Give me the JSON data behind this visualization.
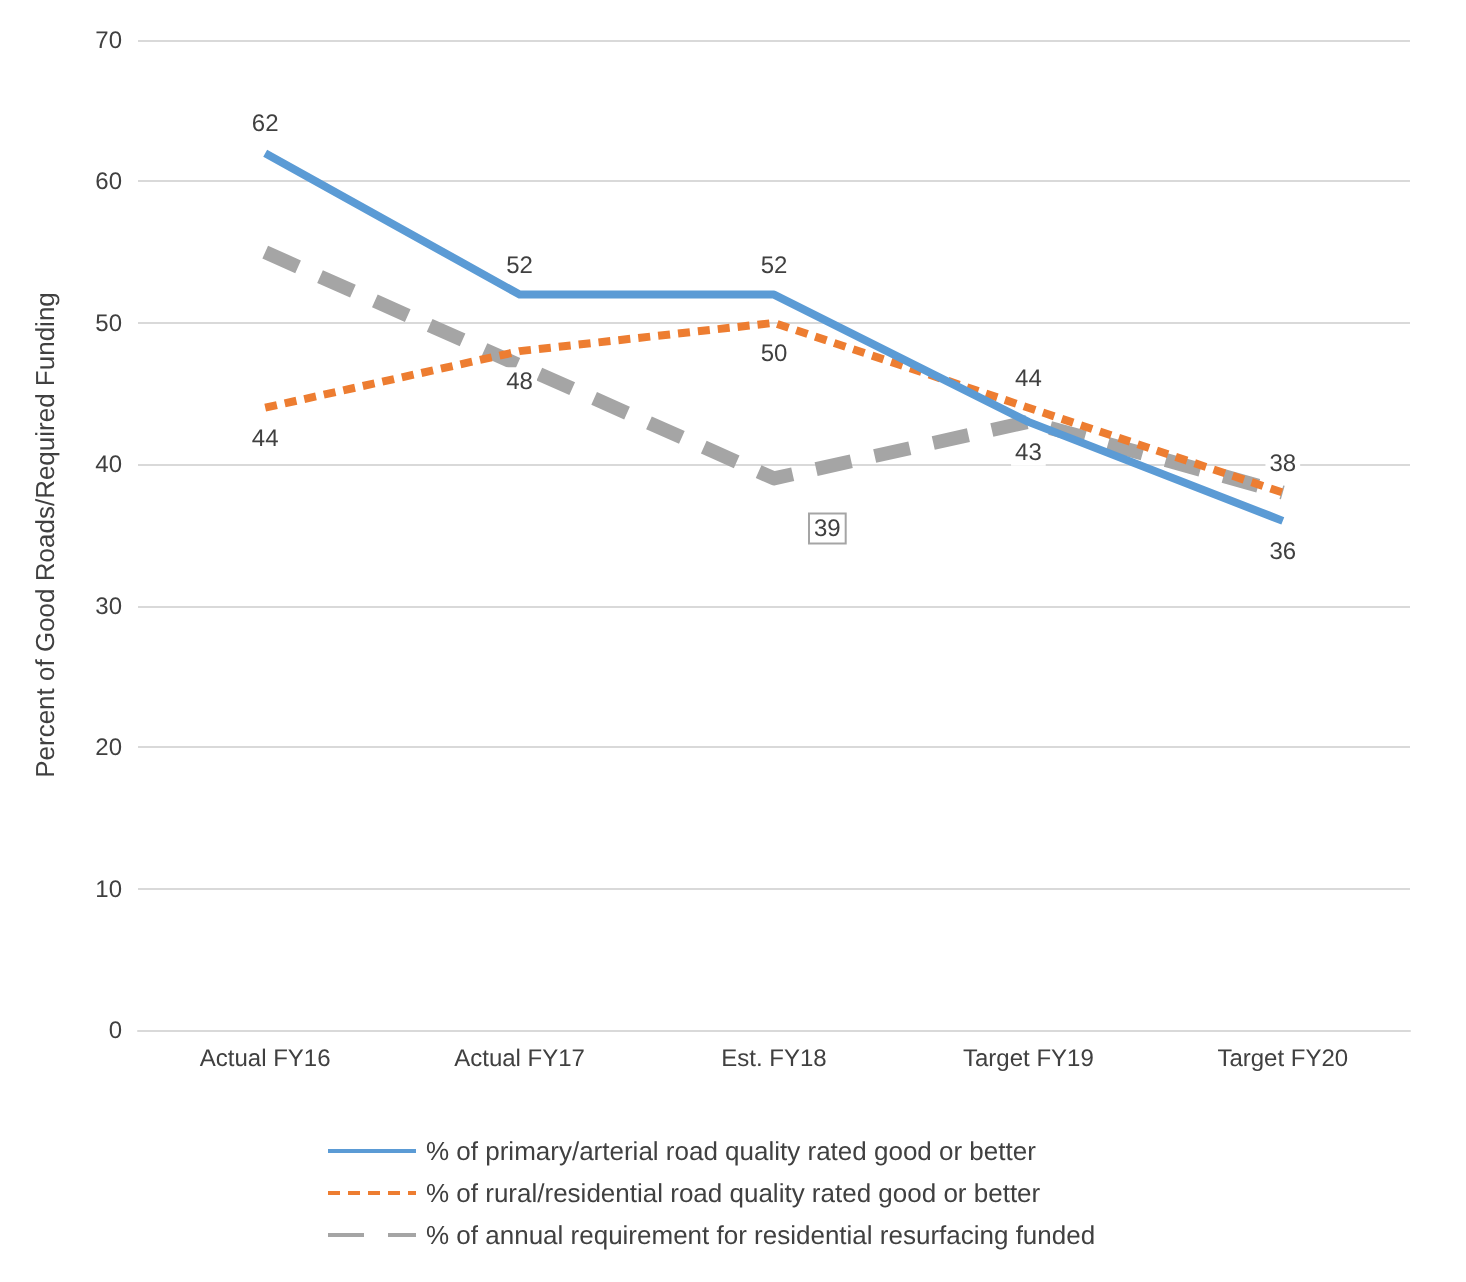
{
  "chart_data": {
    "type": "line",
    "ylabel": "Percent of Good Roads/Required Funding",
    "categories": [
      "Actual FY16",
      "Actual FY17",
      "Est. FY18",
      "Target FY19",
      "Target FY20"
    ],
    "series": [
      {
        "name": "% of primary/arterial road quality rated good or better",
        "color": "#5b9bd5",
        "line_style": "solid",
        "values": [
          62,
          52,
          52,
          43,
          36
        ],
        "value_labels": [
          "62",
          "52",
          "52",
          "43",
          "36"
        ]
      },
      {
        "name": "% of rural/residential road quality rated good or better",
        "color": "#ed7d31",
        "line_style": "dotted",
        "values": [
          44,
          48,
          50,
          44,
          38
        ],
        "value_labels": [
          "44",
          "48",
          "50",
          "44",
          "38"
        ]
      },
      {
        "name": "% of annual requirement for residential resurfacing funded",
        "color": "#a5a5a5",
        "line_style": "dashed",
        "values": [
          55,
          47,
          39,
          43,
          38
        ],
        "value_labels": [
          null,
          null,
          "39",
          null,
          null
        ]
      }
    ],
    "ylim": [
      0,
      70
    ],
    "yticks": [
      0,
      10,
      20,
      30,
      40,
      50,
      60,
      70
    ],
    "grid": "y",
    "legend": "bottom",
    "marker": "none"
  }
}
